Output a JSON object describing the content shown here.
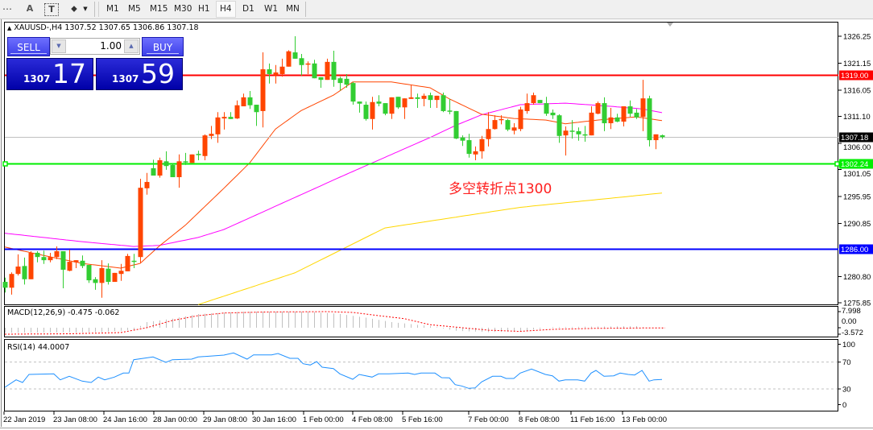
{
  "toolbar": {
    "tools": [
      {
        "name": "fibo-fan-icon",
        "glyph": "⋯"
      },
      {
        "name": "text-tool-icon",
        "glyph": "A"
      },
      {
        "name": "text-label-icon",
        "glyph": "T"
      },
      {
        "name": "shapes-icon",
        "glyph": "⬥"
      }
    ],
    "timeframes": [
      "M1",
      "M5",
      "M15",
      "M30",
      "H1",
      "H4",
      "D1",
      "W1",
      "MN"
    ],
    "active_timeframe": "H4"
  },
  "chart": {
    "symbol_line": "XAUUSD-,H4",
    "ohlc_line": "1307.52 1307.65 1306.86 1307.18",
    "colors": {
      "bull": "#ff4500",
      "bear": "#32cd32",
      "ma_fast": "#ff4500",
      "ma_mid": "#ff00ff",
      "ma_slow": "#ffd700",
      "macd_hist": "#c0c0c0",
      "macd_signal": "#ff0000",
      "rsi": "#1e90ff"
    },
    "price_axis": [
      "1326.25",
      "1321.15",
      "1316.05",
      "1311.10",
      "1306.00",
      "1301.05",
      "1295.95",
      "1290.85",
      "1280.80",
      "1275.85"
    ],
    "price_range": [
      1275.85,
      1326.25
    ],
    "hlines": [
      {
        "price": 1319.0,
        "label": "1319.00",
        "color": "#ff0000"
      },
      {
        "price": 1302.24,
        "label": "1302.24",
        "color": "#00ee00"
      },
      {
        "price": 1286.0,
        "label": "1286.00",
        "color": "#0000ff"
      },
      {
        "price": 1307.18,
        "label": "1307.18",
        "color": "#000000",
        "line": "#c0c0c0"
      }
    ],
    "annotation": "多空转折点1300",
    "time_axis": [
      "22 Jan 2019",
      "23 Jan 08:00",
      "24 Jan 16:00",
      "28 Jan 00:00",
      "29 Jan 08:00",
      "30 Jan 16:00",
      "1 Feb 00:00",
      "4 Feb 08:00",
      "5 Feb 16:00",
      "7 Feb 00:00",
      "8 Feb 08:00",
      "11 Feb 16:00",
      "13 Feb 00:00"
    ],
    "candles_ohlc": [
      [
        1279.8,
        1280.6,
        1277.8,
        1278.7
      ],
      [
        1278.7,
        1281.6,
        1277.4,
        1281.3
      ],
      [
        1281.3,
        1285.0,
        1281.0,
        1282.7
      ],
      [
        1282.8,
        1284.4,
        1279.3,
        1280.3
      ],
      [
        1280.3,
        1285.6,
        1280.3,
        1285.3
      ],
      [
        1285.3,
        1285.6,
        1283.5,
        1284.5
      ],
      [
        1284.5,
        1285.7,
        1283.2,
        1283.9
      ],
      [
        1283.9,
        1285.3,
        1283.5,
        1284.5
      ],
      [
        1284.5,
        1286.5,
        1284.1,
        1285.6
      ],
      [
        1285.6,
        1285.6,
        1278.6,
        1282.1
      ],
      [
        1281.9,
        1285.9,
        1281.8,
        1283.6
      ],
      [
        1283.5,
        1283.9,
        1282.4,
        1283.9
      ],
      [
        1283.8,
        1284.8,
        1282.4,
        1282.8
      ],
      [
        1283.0,
        1283.0,
        1279.6,
        1280.1
      ],
      [
        1280.3,
        1280.7,
        1278.3,
        1279.6
      ],
      [
        1279.6,
        1283.9,
        1276.8,
        1282.4
      ],
      [
        1282.3,
        1283.3,
        1279.3,
        1279.8
      ],
      [
        1279.8,
        1281.5,
        1279.8,
        1281.5
      ],
      [
        1281.3,
        1283.2,
        1280.0,
        1281.9
      ],
      [
        1281.8,
        1285.1,
        1281.8,
        1284.7
      ],
      [
        1283.8,
        1285.1,
        1282.4,
        1283.7
      ],
      [
        1284.5,
        1299.3,
        1283.3,
        1297.6
      ],
      [
        1297.5,
        1300.4,
        1296.3,
        1298.7
      ],
      [
        1301.3,
        1302.9,
        1299.9,
        1299.9
      ],
      [
        1299.9,
        1303.3,
        1299.5,
        1302.8
      ],
      [
        1302.6,
        1304.5,
        1301.0,
        1301.7
      ],
      [
        1301.9,
        1302.2,
        1299.6,
        1299.6
      ],
      [
        1299.6,
        1303.9,
        1297.6,
        1302.6
      ],
      [
        1302.6,
        1304.2,
        1301.9,
        1302.5
      ],
      [
        1302.3,
        1303.9,
        1302.3,
        1303.9
      ],
      [
        1304.0,
        1304.6,
        1302.8,
        1303.9
      ],
      [
        1303.6,
        1307.7,
        1302.8,
        1307.5
      ],
      [
        1307.4,
        1309.3,
        1306.8,
        1307.8
      ],
      [
        1307.7,
        1311.9,
        1306.1,
        1310.9
      ],
      [
        1310.7,
        1311.9,
        1308.6,
        1311.0
      ],
      [
        1311.0,
        1311.9,
        1310.6,
        1310.6
      ],
      [
        1310.7,
        1314.1,
        1310.6,
        1313.2
      ],
      [
        1313.0,
        1315.4,
        1313.0,
        1314.7
      ],
      [
        1314.7,
        1315.9,
        1312.5,
        1313.2
      ],
      [
        1313.3,
        1313.3,
        1309.3,
        1311.9
      ],
      [
        1312.1,
        1323.2,
        1309.0,
        1320.0
      ],
      [
        1320.0,
        1321.1,
        1317.3,
        1319.1
      ],
      [
        1318.9,
        1320.8,
        1317.3,
        1319.4
      ],
      [
        1319.1,
        1322.0,
        1318.6,
        1320.5
      ],
      [
        1320.5,
        1323.6,
        1320.5,
        1323.4
      ],
      [
        1323.2,
        1326.25,
        1322.0,
        1322.0
      ],
      [
        1322.1,
        1322.9,
        1318.8,
        1320.8
      ],
      [
        1320.9,
        1321.5,
        1319.1,
        1321.1
      ],
      [
        1321.1,
        1321.8,
        1318.3,
        1318.3
      ],
      [
        1318.5,
        1318.5,
        1316.5,
        1318.0
      ],
      [
        1318.0,
        1322.0,
        1318.0,
        1321.4
      ],
      [
        1321.4,
        1323.5,
        1316.7,
        1318.0
      ],
      [
        1318.3,
        1318.6,
        1316.0,
        1317.4
      ],
      [
        1318.2,
        1319.1,
        1316.5,
        1317.1
      ],
      [
        1317.4,
        1317.6,
        1313.3,
        1313.9
      ],
      [
        1313.9,
        1313.9,
        1311.8,
        1313.5
      ],
      [
        1313.3,
        1313.9,
        1310.3,
        1310.6
      ],
      [
        1310.6,
        1314.8,
        1308.6,
        1313.8
      ],
      [
        1313.9,
        1315.1,
        1313.0,
        1313.5
      ],
      [
        1313.6,
        1313.6,
        1311.3,
        1311.6
      ],
      [
        1311.6,
        1314.7,
        1310.6,
        1314.7
      ],
      [
        1314.8,
        1314.8,
        1312.5,
        1312.8
      ],
      [
        1312.8,
        1314.5,
        1310.6,
        1314.5
      ],
      [
        1314.4,
        1317.0,
        1314.4,
        1314.7
      ],
      [
        1314.7,
        1315.4,
        1312.7,
        1314.4
      ],
      [
        1314.4,
        1315.4,
        1313.0,
        1315.0
      ],
      [
        1315.1,
        1315.6,
        1312.7,
        1314.2
      ],
      [
        1314.2,
        1315.0,
        1312.7,
        1315.0
      ],
      [
        1315.1,
        1315.6,
        1311.9,
        1312.1
      ],
      [
        1312.2,
        1314.4,
        1311.5,
        1312.1
      ],
      [
        1312.1,
        1312.1,
        1306.8,
        1306.9
      ],
      [
        1307.1,
        1307.5,
        1305.5,
        1306.5
      ],
      [
        1306.6,
        1307.8,
        1303.3,
        1304.0
      ],
      [
        1303.9,
        1305.4,
        1302.8,
        1304.5
      ],
      [
        1304.5,
        1307.4,
        1303.1,
        1306.8
      ],
      [
        1306.8,
        1311.9,
        1305.4,
        1308.7
      ],
      [
        1308.7,
        1311.3,
        1308.6,
        1310.4
      ],
      [
        1310.4,
        1311.3,
        1309.6,
        1310.6
      ],
      [
        1310.4,
        1310.6,
        1308.3,
        1308.6
      ],
      [
        1308.4,
        1309.8,
        1307.7,
        1309.0
      ],
      [
        1308.7,
        1312.9,
        1308.3,
        1312.4
      ],
      [
        1312.1,
        1315.4,
        1311.6,
        1313.6
      ],
      [
        1313.6,
        1315.6,
        1313.3,
        1315.1
      ],
      [
        1314.2,
        1314.2,
        1313.6,
        1313.6
      ],
      [
        1313.6,
        1314.8,
        1311.2,
        1311.6
      ],
      [
        1311.8,
        1312.4,
        1310.6,
        1311.3
      ],
      [
        1311.3,
        1311.5,
        1306.1,
        1307.4
      ],
      [
        1307.5,
        1309.2,
        1303.7,
        1308.4
      ],
      [
        1308.4,
        1310.4,
        1306.9,
        1308.3
      ],
      [
        1308.3,
        1309.0,
        1306.5,
        1307.7
      ],
      [
        1307.7,
        1309.3,
        1306.3,
        1307.5
      ],
      [
        1307.5,
        1313.0,
        1307.5,
        1311.8
      ],
      [
        1311.6,
        1313.9,
        1311.5,
        1313.6
      ],
      [
        1313.6,
        1314.7,
        1308.3,
        1309.8
      ],
      [
        1309.8,
        1312.7,
        1308.7,
        1310.9
      ],
      [
        1310.9,
        1311.6,
        1310.0,
        1310.1
      ],
      [
        1310.1,
        1313.0,
        1309.2,
        1313.0
      ],
      [
        1313.0,
        1314.1,
        1311.0,
        1311.6
      ],
      [
        1311.8,
        1312.5,
        1310.6,
        1310.9
      ],
      [
        1311.0,
        1318.0,
        1308.3,
        1314.5
      ],
      [
        1314.5,
        1315.0,
        1305.4,
        1306.6
      ],
      [
        1306.6,
        1307.7,
        1304.9,
        1307.7
      ],
      [
        1307.52,
        1307.65,
        1306.86,
        1307.18
      ]
    ],
    "ma_fast": [
      [
        0,
        1286.4
      ],
      [
        6,
        1284.8
      ],
      [
        12,
        1283.3
      ],
      [
        18,
        1282.4
      ],
      [
        21,
        1283.3
      ],
      [
        24,
        1286.6
      ],
      [
        28,
        1290.5
      ],
      [
        34,
        1297.5
      ],
      [
        38,
        1302.3
      ],
      [
        42,
        1308.7
      ],
      [
        46,
        1312.2
      ],
      [
        51,
        1315.1
      ],
      [
        54,
        1317.6
      ],
      [
        60,
        1317.6
      ],
      [
        66,
        1316.5
      ],
      [
        69,
        1314.4
      ],
      [
        74,
        1311.5
      ],
      [
        79,
        1310.7
      ],
      [
        84,
        1310.4
      ],
      [
        87,
        1309.7
      ],
      [
        92,
        1310.4
      ],
      [
        98,
        1311.0
      ],
      [
        102,
        1310.3
      ]
    ],
    "ma_mid": [
      [
        0,
        1289.0
      ],
      [
        12,
        1287.4
      ],
      [
        20,
        1286.5
      ],
      [
        24,
        1286.7
      ],
      [
        30,
        1288.2
      ],
      [
        34,
        1289.7
      ],
      [
        52,
        1299.6
      ],
      [
        66,
        1307.1
      ],
      [
        70,
        1309.4
      ],
      [
        74,
        1311.4
      ],
      [
        80,
        1313.3
      ],
      [
        87,
        1313.6
      ],
      [
        94,
        1313.0
      ],
      [
        99,
        1312.5
      ],
      [
        102,
        1311.8
      ]
    ],
    "ma_slow": [
      [
        30,
        1275.5
      ],
      [
        45,
        1281.5
      ],
      [
        59,
        1290.0
      ],
      [
        80,
        1293.9
      ],
      [
        102,
        1296.6
      ]
    ]
  },
  "macd": {
    "label": "MACD(12,26,9) -0.475 -0.062",
    "axis": [
      "7.998",
      "0.00",
      "-3.572"
    ],
    "range": [
      -3.572,
      7.998
    ],
    "histogram": [
      [
        0,
        -2.5
      ],
      [
        15,
        -2.2
      ],
      [
        20,
        -1.0
      ],
      [
        22,
        2.8
      ],
      [
        26,
        4.5
      ],
      [
        30,
        6.8
      ],
      [
        37,
        8.0
      ],
      [
        47,
        8.0
      ],
      [
        52,
        6.8
      ],
      [
        56,
        5.0
      ],
      [
        60,
        2.8
      ],
      [
        66,
        0.8
      ],
      [
        70,
        -1.5
      ],
      [
        75,
        -2.2
      ],
      [
        80,
        -1.8
      ],
      [
        85,
        0.3
      ],
      [
        90,
        0.5
      ],
      [
        98,
        0.8
      ],
      [
        100,
        -0.3
      ],
      [
        102,
        -0.475
      ]
    ],
    "signal": [
      [
        0,
        -3.2
      ],
      [
        10,
        -3.0
      ],
      [
        18,
        -2.4
      ],
      [
        22,
        0
      ],
      [
        26,
        3.6
      ],
      [
        30,
        6.0
      ],
      [
        34,
        7.3
      ],
      [
        40,
        7.8
      ],
      [
        50,
        8.0
      ],
      [
        54,
        7.6
      ],
      [
        58,
        6.0
      ],
      [
        62,
        4.5
      ],
      [
        66,
        1.5
      ],
      [
        70,
        0.3
      ],
      [
        75,
        -1.2
      ],
      [
        80,
        -1.8
      ],
      [
        85,
        -0.8
      ],
      [
        92,
        -0.3
      ],
      [
        102,
        -0.062
      ]
    ]
  },
  "rsi": {
    "label": "RSI(14) 44.0007",
    "axis": [
      "100",
      "70",
      "30",
      "0"
    ],
    "levels": [
      70,
      30
    ],
    "values": [
      [
        0,
        32.4
      ],
      [
        1.75,
        43.6
      ],
      [
        2.75,
        39.6
      ],
      [
        3.75,
        51.6
      ],
      [
        7.6,
        52.4
      ],
      [
        8.6,
        43.6
      ],
      [
        10,
        48.8
      ],
      [
        12,
        41.6
      ],
      [
        13.4,
        39.6
      ],
      [
        14.5,
        47.6
      ],
      [
        15.5,
        43.6
      ],
      [
        17,
        47.6
      ],
      [
        18.4,
        53.6
      ],
      [
        19.25,
        53.6
      ],
      [
        20,
        73.6
      ],
      [
        23,
        77.6
      ],
      [
        25,
        69.6
      ],
      [
        26,
        73.6
      ],
      [
        29,
        74.4
      ],
      [
        30,
        77.6
      ],
      [
        34,
        80.4
      ],
      [
        35.5,
        83.6
      ],
      [
        37.6,
        74.4
      ],
      [
        38.6,
        80.8
      ],
      [
        41.4,
        80.8
      ],
      [
        42.4,
        82.8
      ],
      [
        44.25,
        75.6
      ],
      [
        45.5,
        75.6
      ],
      [
        46.3,
        67.6
      ],
      [
        47.4,
        65.6
      ],
      [
        48.4,
        70.8
      ],
      [
        49.25,
        62.4
      ],
      [
        51,
        60.4
      ],
      [
        52,
        52.4
      ],
      [
        54,
        44.4
      ],
      [
        55,
        51.6
      ],
      [
        57,
        47.6
      ],
      [
        58,
        52.4
      ],
      [
        59.6,
        52.4
      ],
      [
        62.6,
        53.6
      ],
      [
        63.6,
        51.6
      ],
      [
        64.6,
        53.6
      ],
      [
        66.75,
        53.6
      ],
      [
        67.8,
        46.8
      ],
      [
        69,
        46.4
      ],
      [
        69.9,
        36.4
      ],
      [
        70.9,
        34.4
      ],
      [
        72,
        30.8
      ],
      [
        73,
        31.6
      ],
      [
        74,
        40.4
      ],
      [
        75.7,
        48.8
      ],
      [
        77,
        48.8
      ],
      [
        77.8,
        45.6
      ],
      [
        79,
        45.6
      ],
      [
        80,
        53.6
      ],
      [
        81.75,
        59.6
      ],
      [
        83.9,
        51.6
      ],
      [
        85,
        49.6
      ],
      [
        86,
        41.6
      ],
      [
        87,
        43.6
      ],
      [
        88.9,
        43.6
      ],
      [
        90,
        41.6
      ],
      [
        91,
        53.6
      ],
      [
        91.75,
        57.6
      ],
      [
        93,
        48.8
      ],
      [
        94.5,
        49.6
      ],
      [
        95.5,
        53.6
      ],
      [
        96.75,
        51.6
      ],
      [
        97.75,
        50.8
      ],
      [
        98.9,
        57.6
      ],
      [
        100,
        41.6
      ],
      [
        100.75,
        43.6
      ],
      [
        102,
        44.0
      ]
    ]
  },
  "trade_panel": {
    "sell_label": "SELL",
    "buy_label": "BUY",
    "lot": "1.00",
    "sell_price_prefix": "1307",
    "sell_price_big": "17",
    "buy_price_prefix": "1307",
    "buy_price_big": "59"
  }
}
